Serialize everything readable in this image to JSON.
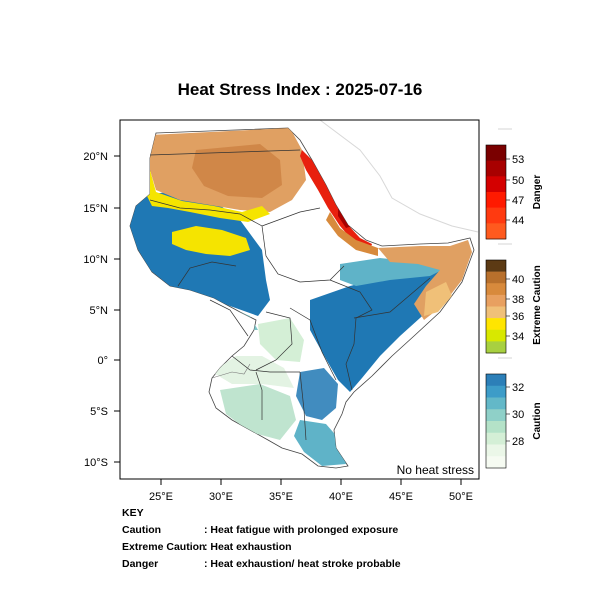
{
  "title": "Heat Stress Index : 2025-07-16",
  "map_note": "No heat stress",
  "axes": {
    "lon_labels": [
      "25°E",
      "30°E",
      "35°E",
      "40°E",
      "45°E",
      "50°E"
    ],
    "lat_labels": [
      "20°N",
      "15°N",
      "10°N",
      "5°N",
      "0°",
      "5°S",
      "10°S"
    ]
  },
  "legend": {
    "danger": {
      "title": "Danger",
      "ticks": [
        "53",
        "50",
        "47",
        "44"
      ],
      "colors": [
        "#7a0000",
        "#a80000",
        "#d40000",
        "#ff1a00",
        "#ff3a10",
        "#ff5a1e"
      ]
    },
    "extreme": {
      "title": "Extreme Caution",
      "ticks": [
        "40",
        "38",
        "36",
        "34"
      ],
      "colors": [
        "#5c3a14",
        "#b8702c",
        "#d88a3c",
        "#e8a060",
        "#f0c078",
        "#ffe500",
        "#d8e800",
        "#a8d040"
      ]
    },
    "caution": {
      "title": "Caution",
      "ticks": [
        "32",
        "30",
        "28"
      ],
      "colors": [
        "#2c7fb8",
        "#3d9cc8",
        "#63b8c8",
        "#8fd0c8",
        "#b4e2c8",
        "#d4efd6",
        "#ebf7e8",
        "#f6fbf2"
      ]
    }
  },
  "key": {
    "heading": "KEY",
    "rows": [
      {
        "term": "Caution",
        "desc": ": Heat fatigue with prolonged exposure"
      },
      {
        "term": "Extreme Caution",
        "desc": ": Heat exhaustion"
      },
      {
        "term": "Danger",
        "desc": ": Heat exhaustion/ heat stroke probable"
      }
    ]
  },
  "colors": {
    "caution_dark": "#1f78b4",
    "caution_mid": "#5fb3c8",
    "caution_light": "#bfe4cf",
    "caution_pale": "#e3f3e3",
    "yellow": "#f5e400",
    "orange": "#e0a062",
    "orange_dark": "#c87a3a",
    "red": "#e8200e",
    "land": "#ffffff",
    "border": "#333333"
  }
}
